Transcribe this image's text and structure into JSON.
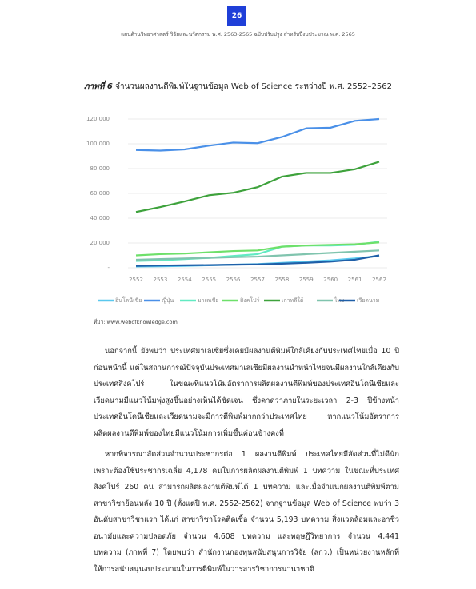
{
  "page_number": "26",
  "header": "แผนด้านวิทยาศาสตร์ วิจัยและนวัตกรรม พ.ศ. 2563-2565 ฉบับปรับปรุง สำหรับปีงบประมาณ พ.ศ. 2565",
  "figure_label": "ภาพที่ 6",
  "figure_title": "จำนวนผลงานตีพิมพ์ในฐานข้อมูล Web of Science ระหว่างปี พ.ศ. 2552–2562",
  "chart_data": {
    "type": "line",
    "categories": [
      "2552",
      "2553",
      "2554",
      "2555",
      "2556",
      "2557",
      "2558",
      "2559",
      "2560",
      "2561",
      "2562"
    ],
    "ylim": [
      0,
      120000
    ],
    "yticks": [
      {
        "value": 0,
        "label": "-"
      },
      {
        "value": 20000,
        "label": "20,000"
      },
      {
        "value": 40000,
        "label": "40,000"
      },
      {
        "value": 60000,
        "label": "60,000"
      },
      {
        "value": 80000,
        "label": "80,000"
      },
      {
        "value": 100000,
        "label": "100,000"
      },
      {
        "value": 120000,
        "label": "120,000"
      }
    ],
    "grid": true,
    "series": [
      {
        "name": "อินโดนีเซีย",
        "color": "#5ac8ee",
        "values": [
          1000,
          1200,
          1500,
          2000,
          2500,
          3000,
          4000,
          5000,
          6000,
          7500,
          9500
        ]
      },
      {
        "name": "ญี่ปุ่น",
        "color": "#4a90e8",
        "values": [
          95000,
          94500,
          95500,
          98500,
          101000,
          100500,
          105500,
          112500,
          113000,
          118500,
          120000
        ]
      },
      {
        "name": "มาเลเซีย",
        "color": "#62eac2",
        "values": [
          5500,
          6000,
          7000,
          8000,
          9500,
          11000,
          17000,
          18000,
          18000,
          18500,
          21000
        ]
      },
      {
        "name": "สิงคโปร์",
        "color": "#6ee06a",
        "values": [
          10000,
          11000,
          11500,
          12500,
          13500,
          14000,
          17000,
          18000,
          18500,
          19000,
          20500
        ]
      },
      {
        "name": "เกาหลีใต้",
        "color": "#3ea23c",
        "values": [
          45000,
          49000,
          53500,
          58500,
          60500,
          65000,
          73500,
          76500,
          76500,
          79500,
          85500
        ]
      },
      {
        "name": "ไทย",
        "color": "#80c4ae",
        "values": [
          6500,
          7000,
          7500,
          8000,
          8500,
          9000,
          10000,
          11000,
          12000,
          13000,
          14000
        ]
      },
      {
        "name": "เวียดนาม",
        "color": "#1f5fa8",
        "values": [
          1500,
          1800,
          2000,
          2200,
          2500,
          2700,
          3300,
          4000,
          5000,
          6500,
          10000
        ]
      }
    ]
  },
  "source": "ที่มา: www.webofknowledge.com",
  "paragraphs": [
    "นอกจากนี้ ยังพบว่า ประเทศมาเลเซียซึ่งเคยมีผลงานตีพิมพ์ใกล้เคียงกับประเทศไทยเมื่อ 10 ปีก่อนหน้านี้ แต่ในสถานการณ์ปัจจุบันประเทศมาเลเซียมีผลงานนำหน้าไทยจนมีผลงานใกล้เคียงกับประเทศสิงคโปร์ ในขณะที่แนวโน้มอัตราการผลิตผลงานตีพิมพ์ของประเทศอินโดนีเซียและเวียดนามมีแนวโน้มพุ่งสูงขึ้นอย่างเห็นได้ชัดเจน ซึ่งคาดว่าภายในระยะเวลา 2-3 ปีข้างหน้าประเทศอินโดนีเซียและเวียดนามจะมีการตีพิมพ์มากกว่าประเทศไทย หากแนวโน้มอัตราการผลิตผลงานตีพิมพ์ของไทยมีแนวโน้มการเพิ่มขึ้นค่อนข้างคงที่",
    "หากพิจารณาสัดส่วนจำนวนประชากรต่อ 1 ผลงานตีพิมพ์ ประเทศไทยมีสัดส่วนที่ไม่ดีนักเพราะต้องใช้ประชากรเฉลี่ย 4,178 คนในการผลิตผลงานตีพิมพ์ 1 บทความ ในขณะที่ประเทศสิงคโปร์ 260 คน สามารถผลิตผลงานตีพิมพ์ได้ 1 บทความ และเมื่อจำแนกผลงานตีพิมพ์ตามสาขาวิชาย้อนหลัง 10 ปี (ตั้งแต่ปี พ.ศ. 2552-2562) จากฐานข้อมูล Web of Science พบว่า 3 อันดับสาขาวิชาแรก ได้แก่ สาขาวิชาโรคติดเชื้อ จำนวน 5,193 บทความ สิ่งแวดล้อมและอาชีวอนามัยและความปลอดภัย จำนวน 4,608 บทความ และทฤษฎีวิทยาการ จำนวน 4,441 บทความ (ภาพที่ 7) โดยพบว่า สำนักงานกองทุนสนับสนุนการวิจัย (สกว.) เป็นหน่วยงานหลักที่ให้การสนับสนุนงบประมาณในการตีพิมพ์ในวารสารวิชาการนานาชาติ"
  ]
}
